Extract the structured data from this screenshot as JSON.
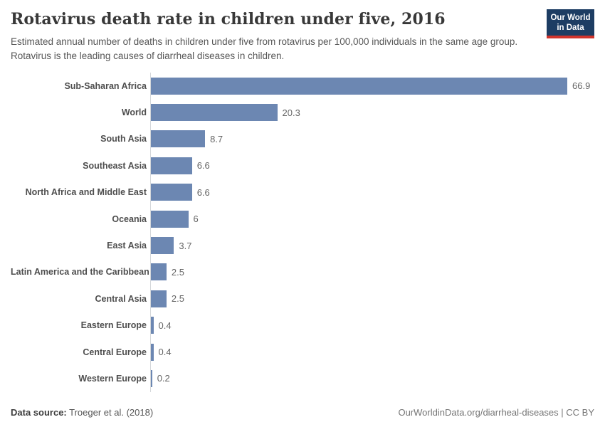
{
  "header": {
    "title": "Rotavirus death rate in children under five, 2016",
    "subtitle": "Estimated annual number of deaths in children under five from rotavirus per 100,000 individuals in the same age group. Rotavirus is the leading causes of diarrheal diseases in children.",
    "logo": {
      "line1": "Our World",
      "line2": "in Data",
      "bg_color": "#1d3d63",
      "stripe_color": "#d0342c"
    }
  },
  "chart_data": {
    "type": "bar",
    "orientation": "horizontal",
    "title": "Rotavirus death rate in children under five, 2016",
    "xlabel": "",
    "ylabel": "",
    "xlim": [
      0,
      66.9
    ],
    "grid": false,
    "legend": false,
    "bar_color": "#6c87b2",
    "categories": [
      "Sub-Saharan Africa",
      "World",
      "South Asia",
      "Southeast Asia",
      "North Africa and Middle East",
      "Oceania",
      "East Asia",
      "Latin America and the Caribbean",
      "Central Asia",
      "Eastern Europe",
      "Central Europe",
      "Western Europe"
    ],
    "values": [
      66.9,
      20.3,
      8.7,
      6.6,
      6.6,
      6,
      3.7,
      2.5,
      2.5,
      0.4,
      0.4,
      0.2
    ],
    "value_labels": [
      "66.9",
      "20.3",
      "8.7",
      "6.6",
      "6.6",
      "6",
      "3.7",
      "2.5",
      "2.5",
      "0.4",
      "0.4",
      "0.2"
    ]
  },
  "footer": {
    "datasource_label": "Data source:",
    "datasource_value": "Troeger et al. (2018)",
    "credit": "OurWorldinData.org/diarrheal-diseases | CC BY"
  }
}
